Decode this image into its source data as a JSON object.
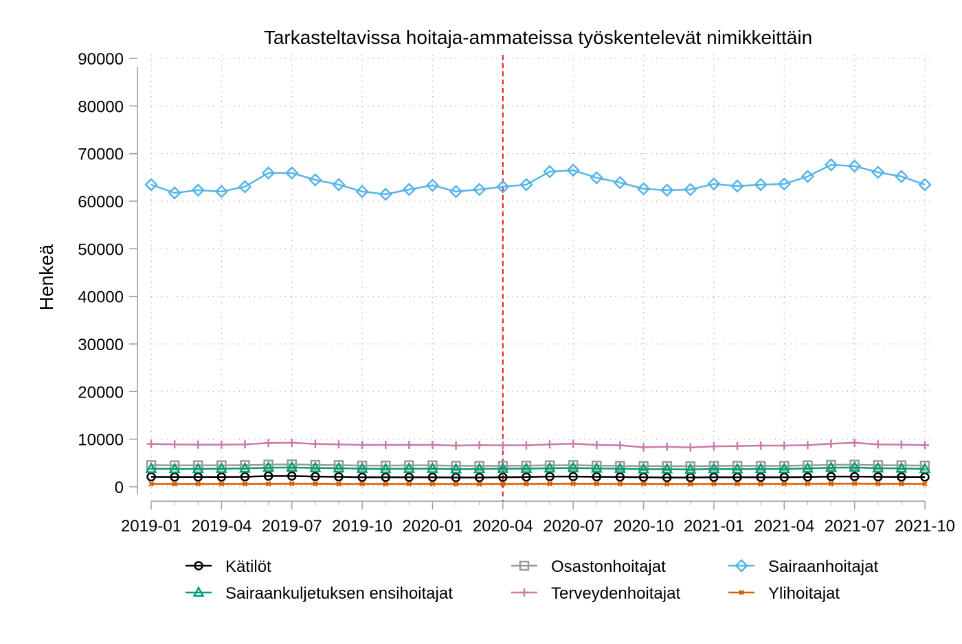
{
  "chart_data": {
    "type": "line",
    "title": "Tarkasteltavissa hoitaja-ammateissa työskentelevät nimikkeittäin",
    "xlabel": "",
    "ylabel": "Henkeä",
    "ylim": [
      0,
      90000
    ],
    "yticks": [
      0,
      10000,
      20000,
      30000,
      40000,
      50000,
      60000,
      70000,
      80000,
      90000
    ],
    "xtick_labels": [
      "2019-01",
      "2019-04",
      "2019-07",
      "2019-10",
      "2020-01",
      "2020-04",
      "2020-07",
      "2020-10",
      "2021-01",
      "2021-04",
      "2021-07",
      "2021-10"
    ],
    "x_start": "2019-01",
    "n_months": 34,
    "reference_line": "2020-04",
    "grid": true,
    "legend_position": "bottom",
    "series": [
      {
        "name": "Kätilöt",
        "color": "#000000",
        "marker": "circle",
        "values": [
          2100,
          2050,
          2050,
          2050,
          2100,
          2250,
          2250,
          2150,
          2100,
          2000,
          2000,
          2000,
          2000,
          1950,
          1950,
          2000,
          2050,
          2150,
          2150,
          2100,
          2050,
          2000,
          1950,
          1950,
          2000,
          2000,
          2000,
          2000,
          2050,
          2150,
          2150,
          2100,
          2050,
          2050
        ]
      },
      {
        "name": "Osastonhoitajat",
        "color": "#999999",
        "marker": "square",
        "values": [
          4550,
          4500,
          4500,
          4500,
          4550,
          4650,
          4700,
          4600,
          4550,
          4450,
          4450,
          4500,
          4500,
          4400,
          4400,
          4400,
          4450,
          4500,
          4550,
          4450,
          4400,
          4350,
          4350,
          4300,
          4400,
          4400,
          4400,
          4400,
          4500,
          4600,
          4650,
          4550,
          4500,
          4450
        ]
      },
      {
        "name": "Sairaanhoitajat",
        "color": "#56B4E9",
        "marker": "diamond",
        "values": [
          63470,
          61730,
          62310,
          62020,
          63030,
          65920,
          65920,
          64470,
          63470,
          62020,
          61440,
          62450,
          63320,
          62020,
          62450,
          63030,
          63470,
          66200,
          66490,
          64910,
          63900,
          62600,
          62310,
          62450,
          63610,
          63180,
          63470,
          63610,
          65190,
          67650,
          67360,
          66060,
          65190,
          63470
        ]
      },
      {
        "name": "Sairaankuljetuksen ensihoitajat",
        "color": "#009E73",
        "marker": "triangle",
        "values": [
          3800,
          3750,
          3750,
          3800,
          3850,
          4000,
          4050,
          3950,
          3900,
          3800,
          3750,
          3800,
          3800,
          3700,
          3750,
          3800,
          3800,
          3900,
          3950,
          3850,
          3800,
          3700,
          3700,
          3650,
          3750,
          3700,
          3750,
          3750,
          3850,
          4000,
          4050,
          3900,
          3850,
          3750
        ]
      },
      {
        "name": "Terveydenhoitajat",
        "color": "#CC79A7",
        "marker": "plus",
        "values": [
          9000,
          8900,
          8850,
          8850,
          8900,
          9200,
          9250,
          9000,
          8900,
          8800,
          8800,
          8800,
          8800,
          8650,
          8750,
          8700,
          8700,
          8900,
          9050,
          8800,
          8700,
          8300,
          8400,
          8250,
          8500,
          8550,
          8650,
          8650,
          8750,
          9050,
          9250,
          8900,
          8850,
          8750
        ]
      },
      {
        "name": "Ylihoitajat",
        "color": "#D55E00",
        "marker": "x",
        "values": [
          600,
          590,
          590,
          590,
          600,
          620,
          630,
          610,
          600,
          590,
          580,
          590,
          600,
          580,
          580,
          590,
          600,
          620,
          630,
          610,
          600,
          590,
          580,
          580,
          590,
          590,
          590,
          600,
          610,
          640,
          650,
          620,
          610,
          600
        ]
      }
    ]
  }
}
